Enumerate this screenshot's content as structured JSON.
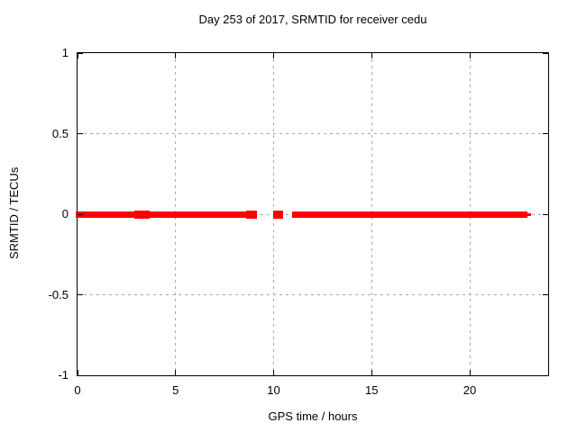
{
  "chart_data": {
    "type": "scatter",
    "title": "Day 253 of 2017, SRMTID for receiver cedu",
    "xlabel": "GPS time / hours",
    "ylabel": "SRMTID / TECUs",
    "xlim": [
      0,
      24
    ],
    "ylim": [
      -1,
      1
    ],
    "xticks": [
      0,
      5,
      10,
      15,
      20
    ],
    "yticks": [
      1,
      0.5,
      0,
      -0.5,
      -1
    ],
    "ytick_labels": [
      "1",
      "0.5",
      "0",
      "-0.5",
      "-1"
    ],
    "xgrid_at": [
      5,
      10,
      15,
      20
    ],
    "ygrid_at": [
      0.5,
      0,
      -0.5
    ],
    "grid": true,
    "legend_position": "none",
    "marker_color": "#ff0000",
    "grid_color": "#a9a9a9",
    "axis_color": "#000000",
    "background_color": "#ffffff",
    "series": [
      {
        "name": "SRMTID",
        "value_center_tecus": 0.0,
        "band_halfwidth_tecus": 0.02,
        "segments_hours": [
          {
            "start": 0.0,
            "end": 2.8,
            "style": "solid"
          },
          {
            "start": 2.97,
            "end": 3.3,
            "style": "sparse"
          },
          {
            "start": 3.42,
            "end": 3.6,
            "style": "sparse"
          },
          {
            "start": 3.6,
            "end": 8.57,
            "style": "solid"
          },
          {
            "start": 8.69,
            "end": 8.88,
            "style": "sparse"
          },
          {
            "start": 8.93,
            "end": 9.07,
            "style": "sparse"
          },
          {
            "start": 10.05,
            "end": 10.2,
            "style": "sparse"
          },
          {
            "start": 10.25,
            "end": 10.38,
            "style": "sparse"
          },
          {
            "start": 11.05,
            "end": 22.85,
            "style": "solid"
          },
          {
            "start": 22.85,
            "end": 23.05,
            "style": "thin"
          }
        ]
      }
    ]
  }
}
